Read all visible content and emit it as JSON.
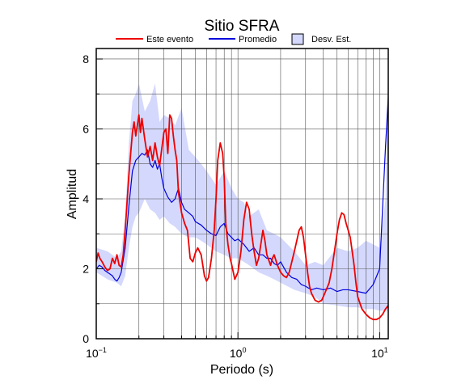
{
  "chart_data": {
    "type": "line",
    "title": "Sitio SFRA",
    "xlabel": "Periodo (s)",
    "ylabel": "Amplitud",
    "x_scale": "log",
    "xlim": [
      0.1,
      11.5
    ],
    "ylim": [
      0,
      8.3
    ],
    "x_ticks": [
      {
        "base": "10",
        "exp": "−1",
        "value": 0.1
      },
      {
        "base": "10",
        "exp": "0",
        "value": 1
      },
      {
        "base": "10",
        "exp": "1",
        "value": 10
      }
    ],
    "y_ticks": [
      0,
      2,
      4,
      6,
      8
    ],
    "grid": true,
    "legend_position": "top",
    "legend": [
      {
        "label": "Este evento",
        "kind": "line",
        "color": "#ee0000"
      },
      {
        "label": "Promedio",
        "kind": "line",
        "color": "#0000dd"
      },
      {
        "label": "Desv. Est.",
        "kind": "box",
        "color": "#d4d8fc"
      }
    ],
    "band": {
      "name": "Desv. Est.",
      "color": "#d4d8fc",
      "x": [
        0.1,
        0.12,
        0.14,
        0.15,
        0.16,
        0.17,
        0.18,
        0.19,
        0.2,
        0.22,
        0.24,
        0.26,
        0.28,
        0.3,
        0.33,
        0.36,
        0.4,
        0.45,
        0.5,
        0.55,
        0.6,
        0.7,
        0.8,
        0.9,
        1.0,
        1.1,
        1.2,
        1.4,
        1.6,
        1.8,
        2.0,
        2.5,
        3.0,
        3.5,
        4.0,
        5.0,
        6.0,
        7.0,
        8.0,
        9.0,
        10.0,
        11.0,
        11.5
      ],
      "upper": [
        2.6,
        2.5,
        2.3,
        2.5,
        3.5,
        5.6,
        6.8,
        7.0,
        7.3,
        6.5,
        6.8,
        7.3,
        6.2,
        6.4,
        6.3,
        6.1,
        6.6,
        5.4,
        5.2,
        5.0,
        4.8,
        4.4,
        4.8,
        4.3,
        4.0,
        3.9,
        3.5,
        3.7,
        3.1,
        3.0,
        2.9,
        2.5,
        2.1,
        2.2,
        2.1,
        2.6,
        2.5,
        2.6,
        2.8,
        2.7,
        2.6,
        4.0,
        8.2
      ],
      "lower": [
        1.9,
        1.7,
        1.6,
        1.5,
        1.8,
        2.6,
        3.2,
        3.5,
        3.6,
        4.0,
        3.7,
        3.6,
        3.4,
        3.5,
        3.3,
        3.2,
        3.0,
        2.9,
        2.9,
        2.8,
        2.7,
        2.5,
        2.4,
        2.3,
        2.3,
        2.2,
        2.1,
        1.9,
        1.8,
        1.7,
        1.6,
        1.4,
        1.3,
        1.2,
        1.0,
        0.95,
        0.9,
        0.9,
        0.85,
        0.85,
        0.8,
        0.8,
        0.8
      ]
    },
    "series": [
      {
        "name": "Este evento",
        "color": "#ee0000",
        "x": [
          0.1,
          0.103,
          0.106,
          0.11,
          0.115,
          0.12,
          0.125,
          0.13,
          0.135,
          0.14,
          0.145,
          0.15,
          0.155,
          0.16,
          0.17,
          0.18,
          0.185,
          0.19,
          0.2,
          0.205,
          0.21,
          0.22,
          0.23,
          0.24,
          0.25,
          0.26,
          0.27,
          0.28,
          0.3,
          0.31,
          0.32,
          0.33,
          0.34,
          0.35,
          0.36,
          0.37,
          0.38,
          0.4,
          0.42,
          0.44,
          0.45,
          0.46,
          0.48,
          0.5,
          0.52,
          0.55,
          0.58,
          0.6,
          0.62,
          0.65,
          0.68,
          0.7,
          0.72,
          0.75,
          0.78,
          0.8,
          0.82,
          0.85,
          0.88,
          0.9,
          0.95,
          1.0,
          1.05,
          1.1,
          1.15,
          1.2,
          1.25,
          1.3,
          1.35,
          1.4,
          1.45,
          1.5,
          1.55,
          1.6,
          1.7,
          1.75,
          1.8,
          1.9,
          2.0,
          2.1,
          2.2,
          2.3,
          2.4,
          2.5,
          2.6,
          2.7,
          2.8,
          2.9,
          3.0,
          3.1,
          3.2,
          3.3,
          3.4,
          3.5,
          3.7,
          3.9,
          4.0,
          4.2,
          4.4,
          4.6,
          4.8,
          5.0,
          5.2,
          5.4,
          5.6,
          5.8,
          6.0,
          6.2,
          6.4,
          6.6,
          6.8,
          7.0,
          7.5,
          8.0,
          8.5,
          9.0,
          9.5,
          10.0,
          10.5,
          11.0,
          11.5
        ],
        "y": [
          2.2,
          2.45,
          2.3,
          2.2,
          2.05,
          1.95,
          2.0,
          2.3,
          2.15,
          2.4,
          2.1,
          2.05,
          2.4,
          3.1,
          4.7,
          5.9,
          6.2,
          5.8,
          6.4,
          5.9,
          6.3,
          5.7,
          5.2,
          5.5,
          5.1,
          5.6,
          5.2,
          4.95,
          5.9,
          6.0,
          5.3,
          6.4,
          6.3,
          5.8,
          5.4,
          5.1,
          4.2,
          3.6,
          3.3,
          3.1,
          2.7,
          2.3,
          2.2,
          2.45,
          2.6,
          2.4,
          1.8,
          1.65,
          1.75,
          2.3,
          3.1,
          4.0,
          5.1,
          5.6,
          5.3,
          4.6,
          3.3,
          2.7,
          2.3,
          2.15,
          1.7,
          1.9,
          2.5,
          3.4,
          3.9,
          3.7,
          3.0,
          2.5,
          2.1,
          2.3,
          2.7,
          3.1,
          2.8,
          2.4,
          2.1,
          2.3,
          2.4,
          2.1,
          1.9,
          1.8,
          1.75,
          1.9,
          2.2,
          2.5,
          2.8,
          3.1,
          3.2,
          2.9,
          2.4,
          1.9,
          1.5,
          1.3,
          1.2,
          1.1,
          1.05,
          1.1,
          1.2,
          1.4,
          1.6,
          2.0,
          2.5,
          3.0,
          3.4,
          3.6,
          3.55,
          3.3,
          3.1,
          2.9,
          2.5,
          2.1,
          1.6,
          1.2,
          0.85,
          0.7,
          0.6,
          0.55,
          0.55,
          0.6,
          0.7,
          0.85,
          0.95
        ]
      },
      {
        "name": "Promedio",
        "color": "#0000dd",
        "x": [
          0.1,
          0.105,
          0.11,
          0.115,
          0.12,
          0.125,
          0.13,
          0.135,
          0.14,
          0.145,
          0.15,
          0.16,
          0.17,
          0.18,
          0.19,
          0.2,
          0.21,
          0.22,
          0.23,
          0.24,
          0.25,
          0.26,
          0.27,
          0.28,
          0.29,
          0.3,
          0.32,
          0.34,
          0.36,
          0.38,
          0.4,
          0.42,
          0.45,
          0.48,
          0.5,
          0.55,
          0.6,
          0.65,
          0.7,
          0.75,
          0.8,
          0.85,
          0.9,
          0.95,
          1.0,
          1.1,
          1.2,
          1.3,
          1.4,
          1.5,
          1.6,
          1.7,
          1.8,
          1.9,
          2.0,
          2.2,
          2.4,
          2.6,
          2.8,
          3.0,
          3.3,
          3.6,
          4.0,
          4.5,
          5.0,
          5.5,
          6.0,
          7.0,
          8.0,
          9.0,
          10.0,
          11.0,
          11.5
        ],
        "y": [
          2.0,
          2.1,
          2.05,
          1.95,
          1.9,
          1.85,
          1.8,
          1.7,
          1.65,
          1.75,
          1.9,
          2.6,
          3.8,
          4.8,
          5.1,
          5.2,
          5.3,
          5.25,
          5.4,
          5.0,
          4.9,
          5.1,
          4.85,
          5.0,
          4.6,
          4.3,
          4.05,
          3.9,
          4.0,
          4.3,
          3.9,
          3.7,
          3.6,
          3.5,
          3.35,
          3.25,
          3.1,
          3.0,
          2.95,
          3.2,
          3.3,
          3.0,
          2.9,
          2.8,
          2.85,
          2.7,
          2.5,
          2.6,
          2.4,
          2.4,
          2.3,
          2.3,
          2.15,
          2.1,
          2.2,
          1.9,
          1.75,
          1.7,
          1.55,
          1.5,
          1.4,
          1.45,
          1.4,
          1.45,
          1.35,
          1.4,
          1.4,
          1.35,
          1.3,
          1.55,
          2.0,
          5.5,
          6.9
        ]
      }
    ]
  }
}
